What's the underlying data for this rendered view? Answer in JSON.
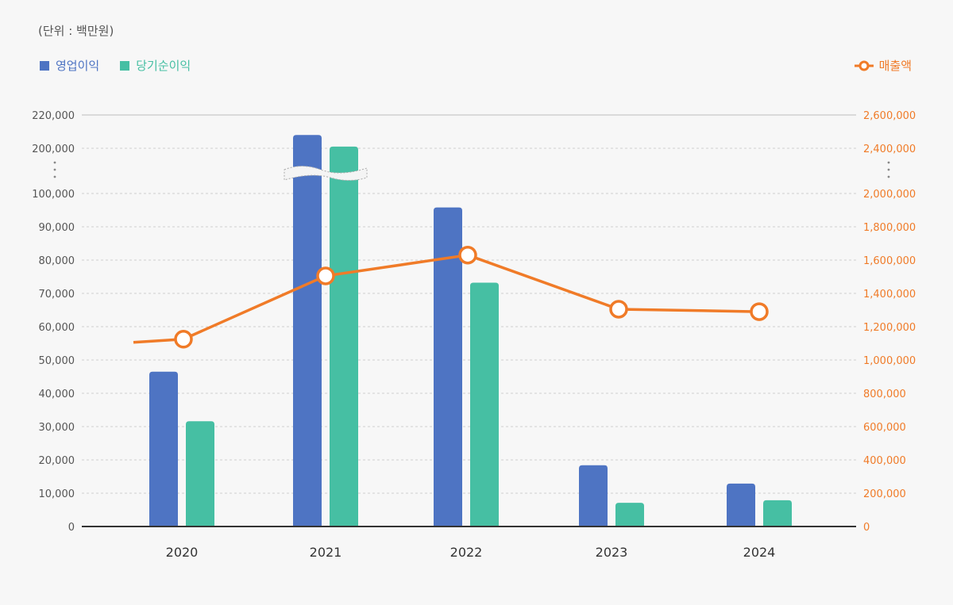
{
  "unit_label": "(단위 : 백만원)",
  "legend": {
    "operating_profit": "영업이익",
    "net_income": "당기순이익",
    "revenue": "매출액"
  },
  "colors": {
    "operating_profit": "#4e74c3",
    "net_income": "#46bfa3",
    "revenue": "#f07b28",
    "axis_left": "#555555",
    "axis_right": "#f07b28"
  },
  "chart_data": {
    "type": "bar",
    "categories": [
      "2020",
      "2021",
      "2022",
      "2023",
      "2024"
    ],
    "series": [
      {
        "name": "영업이익",
        "type": "bar",
        "axis": "left",
        "values": [
          46500,
          208000,
          95800,
          18400,
          12900
        ]
      },
      {
        "name": "당기순이익",
        "type": "bar",
        "axis": "left",
        "values": [
          31600,
          201000,
          73200,
          7100,
          7900
        ]
      },
      {
        "name": "매출액",
        "type": "line",
        "axis": "right",
        "values": [
          1125000,
          1505000,
          1630000,
          1305000,
          1290000
        ]
      }
    ],
    "left_axis": {
      "ticks": [
        0,
        10000,
        20000,
        30000,
        40000,
        50000,
        60000,
        70000,
        80000,
        90000,
        100000,
        200000,
        220000
      ],
      "tick_labels": [
        "0",
        "10,000",
        "20,000",
        "30,000",
        "40,000",
        "50,000",
        "60,000",
        "70,000",
        "80,000",
        "90,000",
        "100,000",
        "200,000",
        "220,000"
      ],
      "axis_break": [
        100000,
        200000
      ]
    },
    "right_axis": {
      "ticks": [
        0,
        200000,
        400000,
        600000,
        800000,
        1000000,
        1200000,
        1400000,
        1600000,
        1800000,
        2000000,
        2400000,
        2600000
      ],
      "tick_labels": [
        "0",
        "200,000",
        "400,000",
        "600,000",
        "800,000",
        "1,000,000",
        "1,200,000",
        "1,400,000",
        "1,600,000",
        "1,800,000",
        "2,000,000",
        "2,400,000",
        "2,600,000"
      ],
      "axis_break": [
        2000000,
        2400000
      ]
    },
    "grid": true,
    "legend_placement": "top"
  }
}
